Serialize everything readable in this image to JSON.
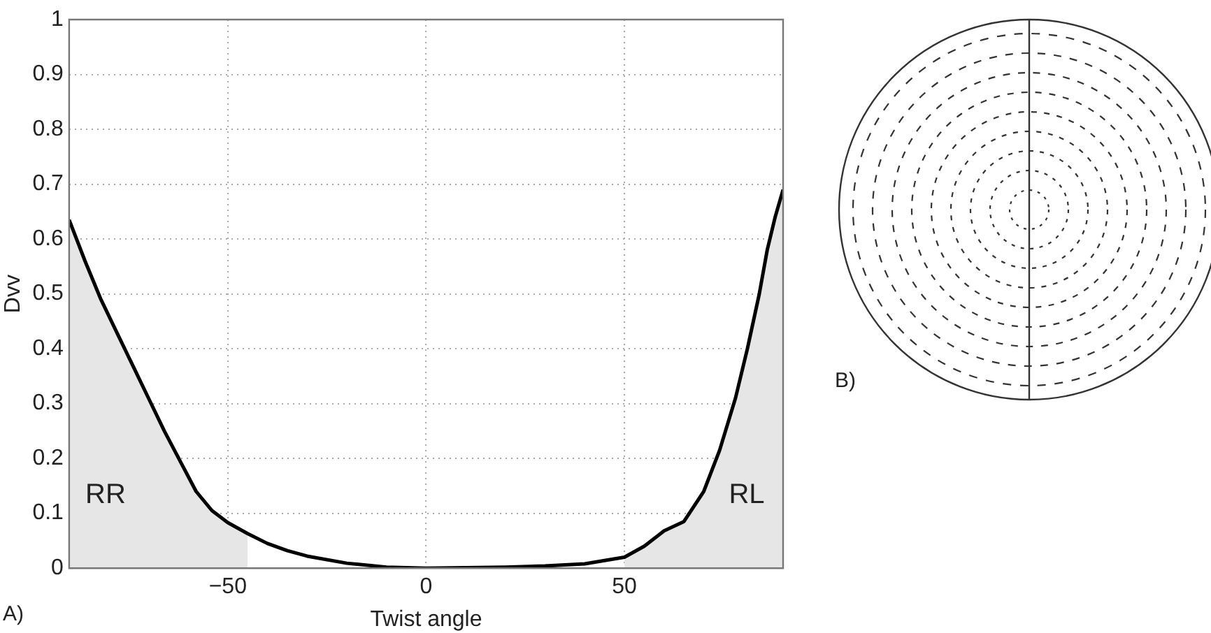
{
  "chart_data": {
    "type": "line",
    "xlabel": "Twist angle",
    "ylabel": "Dvv",
    "x": [
      -90,
      -86,
      -82,
      -78,
      -74,
      -70,
      -66,
      -62,
      -58,
      -54,
      -50,
      -45,
      -40,
      -35,
      -30,
      -20,
      -10,
      0,
      10,
      20,
      30,
      40,
      50,
      55,
      60,
      65,
      70,
      74,
      78,
      81,
      84,
      86,
      88,
      90
    ],
    "series": [
      {
        "type": "area",
        "color": "#e6e6e6",
        "x": [
          -90,
          -86,
          -82,
          -78,
          -74,
          -70,
          -66,
          -62,
          -58,
          -54,
          -50,
          -45
        ],
        "values": [
          0.635,
          0.56,
          0.49,
          0.43,
          0.37,
          0.31,
          0.25,
          0.195,
          0.14,
          0.105,
          0.083,
          0.063
        ]
      },
      {
        "type": "area",
        "color": "#e6e6e6",
        "x": [
          50,
          55,
          60,
          65,
          70,
          74,
          78,
          81,
          84,
          86,
          88,
          90
        ],
        "values": [
          0.02,
          0.04,
          0.068,
          0.085,
          0.14,
          0.215,
          0.31,
          0.4,
          0.5,
          0.58,
          0.64,
          0.69
        ]
      },
      {
        "color": "#000000",
        "values": [
          0.635,
          0.56,
          0.49,
          0.43,
          0.37,
          0.31,
          0.25,
          0.195,
          0.14,
          0.105,
          0.083,
          0.063,
          0.045,
          0.032,
          0.022,
          0.009,
          0.002,
          0,
          0.001,
          0.002,
          0.004,
          0.008,
          0.02,
          0.04,
          0.068,
          0.085,
          0.14,
          0.215,
          0.31,
          0.4,
          0.5,
          0.58,
          0.64,
          0.69
        ]
      }
    ],
    "xlim": [
      -90,
      90
    ],
    "xticks": [
      -50,
      0,
      50
    ],
    "ylim": [
      0,
      1
    ],
    "yticks": [
      0,
      0.1,
      0.2,
      0.3,
      0.4,
      0.5,
      0.6,
      0.7,
      0.8,
      0.9,
      1
    ],
    "grid": true,
    "line_style": "solid",
    "marker": "none",
    "legend": false,
    "annotations": [
      "A)",
      "B)",
      "RR",
      "RL"
    ]
  }
}
